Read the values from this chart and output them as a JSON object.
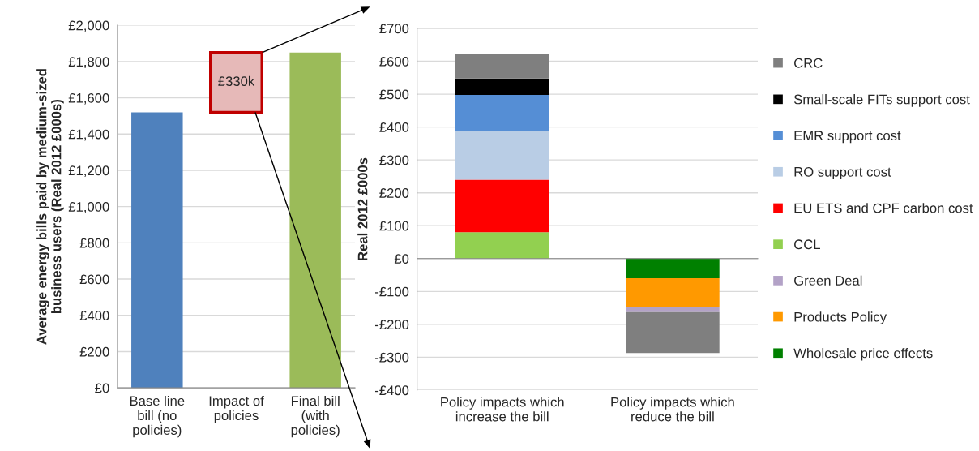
{
  "chart_data": [
    {
      "type": "bar",
      "ylabel": "Average energy bills paid by medium-sized business users (Real 2012 £000s)",
      "categories": [
        "Base line\nbill (no\npolicies)",
        "Impact of\npolicies",
        "Final bill\n(with\npolicies)"
      ],
      "values": [
        1520,
        330,
        1850
      ],
      "base": [
        0,
        1520,
        0
      ],
      "colors": [
        "#4f81bd",
        "#e6b9b8",
        "#9bbb59"
      ],
      "value_labels": [
        null,
        "£330k",
        null
      ],
      "ylim": [
        0,
        2000
      ],
      "yticks": [
        {
          "value": 0,
          "label": "£0"
        },
        {
          "value": 200,
          "label": "£200"
        },
        {
          "value": 400,
          "label": "£400"
        },
        {
          "value": 600,
          "label": "£600"
        },
        {
          "value": 800,
          "label": "£800"
        },
        {
          "value": 1000,
          "label": "£1,000"
        },
        {
          "value": 1200,
          "label": "£1,200"
        },
        {
          "value": 1400,
          "label": "£1,400"
        },
        {
          "value": 1600,
          "label": "£1,600"
        },
        {
          "value": 1800,
          "label": "£1,800"
        },
        {
          "value": 2000,
          "label": "£2,000"
        }
      ],
      "grid": "y"
    },
    {
      "type": "bar",
      "stacked": true,
      "ylabel": "Real 2012 £000s",
      "categories": [
        "Policy impacts which\nincrease the bill",
        "Policy impacts which\nreduce the bill"
      ],
      "series": [
        {
          "name": "Wholesale price effects",
          "color": "#008000",
          "values": [
            null,
            -60
          ]
        },
        {
          "name": "Products Policy",
          "color": "#ff9900",
          "values": [
            null,
            -88
          ]
        },
        {
          "name": "Green Deal",
          "color": "#b3a2c7",
          "values": [
            null,
            -15
          ]
        },
        {
          "name": "CCL",
          "color": "#92d050",
          "values": [
            80,
            null
          ]
        },
        {
          "name": "EU ETS and CPF carbon cost",
          "color": "#ff0000",
          "values": [
            160,
            null
          ]
        },
        {
          "name": "RO support cost",
          "color": "#b9cde5",
          "values": [
            148,
            null
          ]
        },
        {
          "name": "EMR support cost",
          "color": "#558ed5",
          "values": [
            110,
            null
          ]
        },
        {
          "name": "Small-scale FITs support cost",
          "color": "#000000",
          "values": [
            50,
            null
          ]
        },
        {
          "name": "CRC",
          "color": "#7f7f7f",
          "values": [
            74,
            -124
          ]
        }
      ],
      "ylim": [
        -400,
        700
      ],
      "yticks": [
        {
          "value": -400,
          "label": "-£400"
        },
        {
          "value": -300,
          "label": "-£300"
        },
        {
          "value": -200,
          "label": "-£200"
        },
        {
          "value": -100,
          "label": "-£100"
        },
        {
          "value": 0,
          "label": "£0"
        },
        {
          "value": 100,
          "label": "£100"
        },
        {
          "value": 200,
          "label": "£200"
        },
        {
          "value": 300,
          "label": "£300"
        },
        {
          "value": 400,
          "label": "£400"
        },
        {
          "value": 500,
          "label": "£500"
        },
        {
          "value": 600,
          "label": "£600"
        },
        {
          "value": 700,
          "label": "£700"
        }
      ],
      "grid": "y",
      "legend": "right"
    }
  ]
}
